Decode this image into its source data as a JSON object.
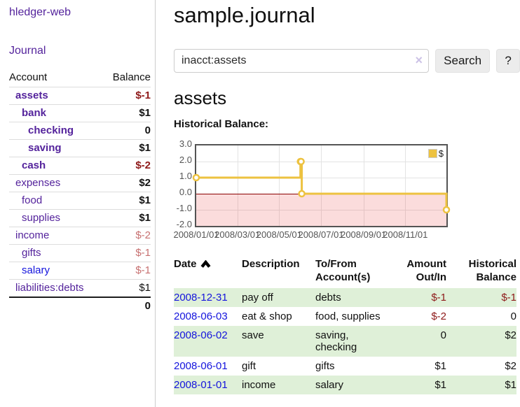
{
  "app": {
    "title": "hledger-web"
  },
  "nav": {
    "journal": "Journal"
  },
  "sidebar": {
    "header": {
      "account": "Account",
      "balance": "Balance"
    },
    "accounts": [
      {
        "name": "assets",
        "balance": "$-1"
      },
      {
        "name": "bank",
        "balance": "$1"
      },
      {
        "name": "checking",
        "balance": "0"
      },
      {
        "name": "saving",
        "balance": "$1"
      },
      {
        "name": "cash",
        "balance": "$-2"
      },
      {
        "name": "expenses",
        "balance": "$2"
      },
      {
        "name": "food",
        "balance": "$1"
      },
      {
        "name": "supplies",
        "balance": "$1"
      },
      {
        "name": "income",
        "balance": "$-2"
      },
      {
        "name": "gifts",
        "balance": "$-1"
      },
      {
        "name": "salary",
        "balance": "$-1"
      },
      {
        "name": "liabilities:debts",
        "balance": "$1"
      }
    ],
    "total": "0"
  },
  "main": {
    "title": "sample.journal",
    "search": {
      "value": "inacct:assets",
      "clear": "×",
      "button": "Search",
      "help": "?"
    },
    "account_heading": "assets",
    "chart_heading": "Historical Balance:"
  },
  "chart_data": {
    "type": "line",
    "title": "Historical Balance:",
    "legend": [
      {
        "label": "$",
        "color": "#EDC240"
      }
    ],
    "legend_position": "top-right",
    "grid": true,
    "x_range": [
      "2008-01-01",
      "2008-12-31"
    ],
    "y_range": [
      -2,
      3
    ],
    "x_ticks": [
      {
        "date": "2008-01-01",
        "label": "2008/01/01"
      },
      {
        "date": "2008-03-01",
        "label": "2008/03/01"
      },
      {
        "date": "2008-05-01",
        "label": "2008/05/01"
      },
      {
        "date": "2008-07-01",
        "label": "2008/07/01"
      },
      {
        "date": "2008-09-01",
        "label": "2008/09/01"
      },
      {
        "date": "2008-11-01",
        "label": "2008/11/01"
      }
    ],
    "y_ticks": [
      3.0,
      2.0,
      1.0,
      0.0,
      -1.0,
      -2.0
    ],
    "series": [
      {
        "name": "$",
        "color": "#EDC240",
        "step": true,
        "points": [
          [
            "2008-01-01",
            1
          ],
          [
            "2008-06-01",
            2
          ],
          [
            "2008-06-02",
            2
          ],
          [
            "2008-06-03",
            0
          ],
          [
            "2008-12-31",
            -1
          ]
        ]
      }
    ],
    "negative_region": {
      "below": 0,
      "fill": "#fbdcdc",
      "line_color": "#8b0000"
    }
  },
  "register": {
    "headers": {
      "date": "Date",
      "description": "Description",
      "tofrom": "To/From Account(s)",
      "amount": "Amount Out/In",
      "balance": "Historical Balance"
    },
    "rows": [
      {
        "date": "2008-12-31",
        "description": "pay off",
        "accounts": "debts",
        "amount": "$-1",
        "balance": "$-1"
      },
      {
        "date": "2008-06-03",
        "description": "eat & shop",
        "accounts": "food, supplies",
        "amount": "$-2",
        "balance": "0"
      },
      {
        "date": "2008-06-02",
        "description": "save",
        "accounts": "saving, checking",
        "amount": "0",
        "balance": "$2"
      },
      {
        "date": "2008-06-01",
        "description": "gift",
        "accounts": "gifts",
        "amount": "$1",
        "balance": "$2"
      },
      {
        "date": "2008-01-01",
        "description": "income",
        "accounts": "salary",
        "amount": "$1",
        "balance": "$1"
      }
    ]
  }
}
